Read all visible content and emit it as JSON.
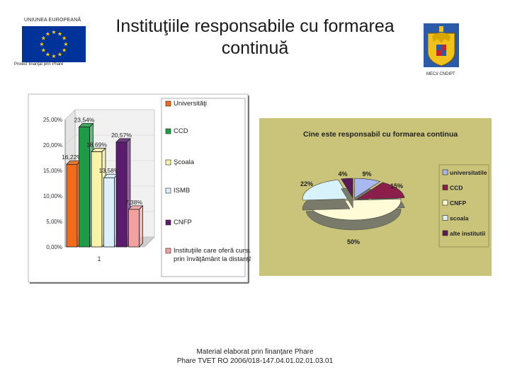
{
  "header": {
    "eu_label": "UNIUNEA EUROPEANĂ",
    "eu_subtitle": "Proiect finanţat prin Phare",
    "title_line1": "Instituţiile responsabile cu formarea",
    "title_line2": "continuă",
    "right_label": "MECI/ CNDIPT"
  },
  "footer": {
    "line1": "Material elaborat prin finanţare Phare",
    "line2": "Phare TVET RO 2006/018-147.04.01.02.01.03.01"
  },
  "colors": {
    "eu_blue": "#003399",
    "eu_star": "#FFCC00"
  },
  "chart_data": [
    {
      "type": "bar",
      "categories": [
        "1"
      ],
      "series": [
        {
          "name": "Universităţi",
          "values": [
            16.22
          ],
          "label": "16,22%",
          "color": "#f26a1b"
        },
        {
          "name": "CCD",
          "values": [
            23.54
          ],
          "label": "23,54%",
          "color": "#1e9c45"
        },
        {
          "name": "Şcoala",
          "values": [
            18.69
          ],
          "label": "18,69%",
          "color": "#f7f3a8"
        },
        {
          "name": "ISMB",
          "values": [
            13.58
          ],
          "label": "13,58%",
          "color": "#dcefff"
        },
        {
          "name": "CNFP",
          "values": [
            20.57
          ],
          "label": "20,57%",
          "color": "#5b1c6e"
        },
        {
          "name": "Instituţiile care oferă cursuri prin învăţământ la distanţă",
          "values": [
            7.38
          ],
          "label": "7,38%",
          "color": "#f2a0a0"
        }
      ],
      "legend_lines": [
        [
          "Universităţi"
        ],
        [
          "CCD"
        ],
        [
          "Şcoala"
        ],
        [
          "ISMB"
        ],
        [
          "CNFP"
        ],
        [
          "Instituţiile care oferă cursuri",
          "prin învăţământ la distanţă"
        ]
      ],
      "yticks": [
        "0,00%",
        "5,00%",
        "10,00%",
        "15,00%",
        "20,00%",
        "25,00%"
      ],
      "ylim": [
        0,
        25
      ],
      "legend": "right"
    },
    {
      "type": "pie",
      "title": "Cine este responsabil cu formarea continua",
      "slices": [
        {
          "name": "universitatile",
          "value": 9,
          "label": "9%",
          "color": "#a9b8ee"
        },
        {
          "name": "CCD",
          "value": 15,
          "label": "15%",
          "color": "#8b1e4a"
        },
        {
          "name": "CNFP",
          "value": 50,
          "label": "50%",
          "color": "#fffbd6"
        },
        {
          "name": "scoala",
          "value": 22,
          "label": "22%",
          "color": "#d7f2fb"
        },
        {
          "name": "alte institutii",
          "value": 4,
          "label": "4%",
          "color": "#5a1a5a"
        }
      ],
      "legend": "right",
      "background": "#c9c47a"
    }
  ]
}
